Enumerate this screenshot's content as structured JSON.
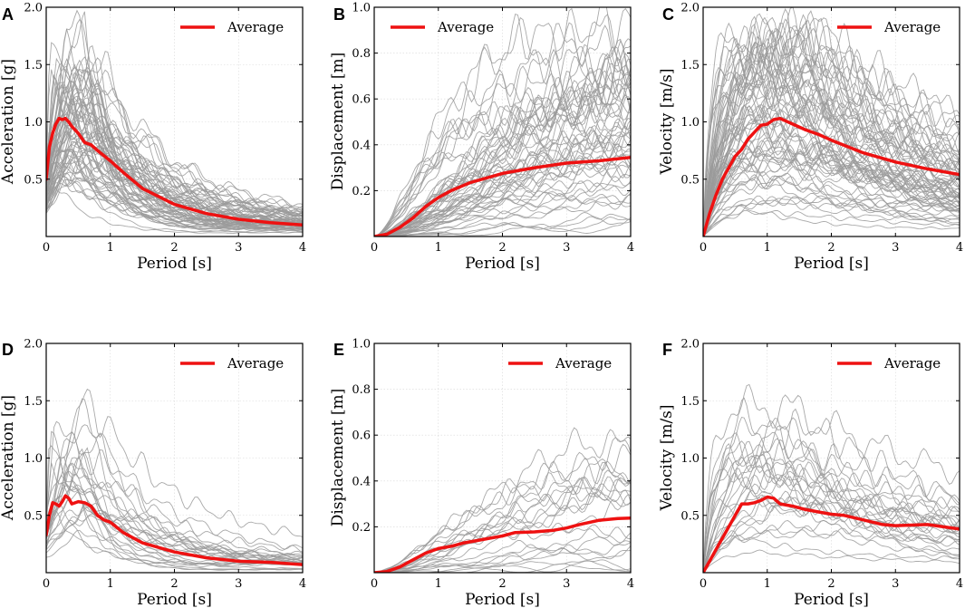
{
  "colors": {
    "average": "#ee1111",
    "records": "#9a9a9a",
    "grid": "#d8d8d8"
  },
  "chart_data": [
    {
      "panel": "A",
      "type": "line",
      "xlabel": "Period [s]",
      "ylabel": "Acceleration [g]",
      "xlim": [
        0,
        4
      ],
      "ylim": [
        0,
        2.0
      ],
      "xticks": [
        0,
        1,
        2,
        3,
        4
      ],
      "yticks": [
        0.5,
        1.0,
        1.5,
        2.0
      ],
      "ytick_labels": [
        "0.5",
        "1.0",
        "1.5",
        "2.0"
      ],
      "legend": "Average",
      "legend_position": "top-right",
      "series": [
        {
          "name": "Average",
          "x": [
            0,
            0.05,
            0.1,
            0.15,
            0.2,
            0.25,
            0.3,
            0.35,
            0.4,
            0.5,
            0.6,
            0.7,
            0.8,
            1.0,
            1.2,
            1.5,
            2.0,
            2.5,
            3.0,
            3.5,
            4.0
          ],
          "y": [
            0.5,
            0.78,
            0.9,
            0.98,
            1.03,
            1.02,
            1.03,
            1.0,
            0.96,
            0.9,
            0.82,
            0.8,
            0.75,
            0.66,
            0.56,
            0.42,
            0.28,
            0.2,
            0.15,
            0.12,
            0.1
          ]
        }
      ]
    },
    {
      "panel": "B",
      "type": "line",
      "xlabel": "Period [s]",
      "ylabel": "Displacement [m]",
      "xlim": [
        0,
        4
      ],
      "ylim": [
        0,
        1.0
      ],
      "xticks": [
        0,
        1,
        2,
        3,
        4
      ],
      "yticks": [
        0.2,
        0.4,
        0.6,
        0.8,
        1.0
      ],
      "ytick_labels": [
        "0.2",
        "0.4",
        "0.6",
        "0.8",
        "1.0"
      ],
      "legend": "Average",
      "legend_position": "top-left",
      "series": [
        {
          "name": "Average",
          "x": [
            0,
            0.2,
            0.4,
            0.6,
            0.8,
            1.0,
            1.2,
            1.5,
            2.0,
            2.5,
            3.0,
            3.5,
            4.0
          ],
          "y": [
            0,
            0.01,
            0.04,
            0.08,
            0.13,
            0.17,
            0.2,
            0.235,
            0.275,
            0.3,
            0.32,
            0.33,
            0.345
          ]
        }
      ]
    },
    {
      "panel": "C",
      "type": "line",
      "xlabel": "Period [s]",
      "ylabel": "Velocity [m/s]",
      "xlim": [
        0,
        4
      ],
      "ylim": [
        0,
        2.0
      ],
      "xticks": [
        0,
        1,
        2,
        3,
        4
      ],
      "yticks": [
        0.5,
        1.0,
        1.5,
        2.0
      ],
      "ytick_labels": [
        "0.5",
        "1.0",
        "1.5",
        "2.0"
      ],
      "legend": "Average",
      "legend_position": "top-right",
      "series": [
        {
          "name": "Average",
          "x": [
            0,
            0.1,
            0.2,
            0.3,
            0.4,
            0.5,
            0.6,
            0.7,
            0.8,
            0.9,
            1.0,
            1.1,
            1.2,
            1.4,
            1.6,
            1.8,
            2.0,
            2.5,
            3.0,
            3.5,
            4.0
          ],
          "y": [
            0,
            0.2,
            0.36,
            0.5,
            0.6,
            0.7,
            0.76,
            0.85,
            0.91,
            0.97,
            0.98,
            1.02,
            1.03,
            0.98,
            0.93,
            0.89,
            0.84,
            0.73,
            0.65,
            0.59,
            0.54
          ]
        }
      ]
    },
    {
      "panel": "D",
      "type": "line",
      "xlabel": "Period [s]",
      "ylabel": "Acceleration [g]",
      "xlim": [
        0,
        4
      ],
      "ylim": [
        0,
        2.0
      ],
      "xticks": [
        0,
        1,
        2,
        3,
        4
      ],
      "yticks": [
        0.5,
        1.0,
        1.5,
        2.0
      ],
      "ytick_labels": [
        "0.5",
        "1.0",
        "1.5",
        "2.0"
      ],
      "legend": "Average",
      "legend_position": "top-right",
      "series": [
        {
          "name": "Average",
          "x": [
            0,
            0.05,
            0.1,
            0.15,
            0.2,
            0.25,
            0.3,
            0.35,
            0.4,
            0.5,
            0.6,
            0.7,
            0.8,
            0.9,
            1.0,
            1.2,
            1.5,
            2.0,
            2.5,
            3.0,
            3.5,
            4.0
          ],
          "y": [
            0.33,
            0.5,
            0.61,
            0.6,
            0.58,
            0.62,
            0.67,
            0.65,
            0.6,
            0.62,
            0.61,
            0.58,
            0.5,
            0.46,
            0.44,
            0.35,
            0.26,
            0.18,
            0.13,
            0.1,
            0.09,
            0.07
          ]
        }
      ]
    },
    {
      "panel": "E",
      "type": "line",
      "xlabel": "Period [s]",
      "ylabel": "Displacement [m]",
      "xlim": [
        0,
        4
      ],
      "ylim": [
        0,
        1.0
      ],
      "xticks": [
        0,
        1,
        2,
        3,
        4
      ],
      "yticks": [
        0.2,
        0.4,
        0.6,
        0.8,
        1.0
      ],
      "ytick_labels": [
        "0.2",
        "0.4",
        "0.6",
        "0.8",
        "1.0"
      ],
      "legend": "Average",
      "legend_position": "top-right",
      "series": [
        {
          "name": "Average",
          "x": [
            0,
            0.2,
            0.4,
            0.6,
            0.8,
            1.0,
            1.2,
            1.4,
            1.6,
            1.8,
            2.0,
            2.2,
            2.5,
            2.8,
            3.0,
            3.2,
            3.5,
            3.8,
            4.0
          ],
          "y": [
            0,
            0.005,
            0.025,
            0.055,
            0.085,
            0.105,
            0.115,
            0.13,
            0.14,
            0.15,
            0.16,
            0.175,
            0.178,
            0.185,
            0.195,
            0.21,
            0.228,
            0.236,
            0.238
          ]
        }
      ]
    },
    {
      "panel": "F",
      "type": "line",
      "xlabel": "Period [s]",
      "ylabel": "Velocity [m/s]",
      "xlim": [
        0,
        4
      ],
      "ylim": [
        0,
        2.0
      ],
      "xticks": [
        0,
        1,
        2,
        3,
        4
      ],
      "yticks": [
        0.5,
        1.0,
        1.5,
        2.0
      ],
      "ytick_labels": [
        "0.5",
        "1.0",
        "1.5",
        "2.0"
      ],
      "legend": "Average",
      "legend_position": "top-right",
      "series": [
        {
          "name": "Average",
          "x": [
            0,
            0.1,
            0.2,
            0.3,
            0.4,
            0.5,
            0.6,
            0.7,
            0.8,
            0.9,
            1.0,
            1.1,
            1.2,
            1.4,
            1.6,
            1.8,
            2.0,
            2.2,
            2.5,
            2.8,
            3.0,
            3.5,
            4.0
          ],
          "y": [
            0,
            0.1,
            0.2,
            0.3,
            0.4,
            0.5,
            0.6,
            0.6,
            0.61,
            0.63,
            0.66,
            0.65,
            0.6,
            0.58,
            0.55,
            0.53,
            0.51,
            0.5,
            0.46,
            0.42,
            0.41,
            0.42,
            0.38
          ]
        }
      ]
    }
  ]
}
